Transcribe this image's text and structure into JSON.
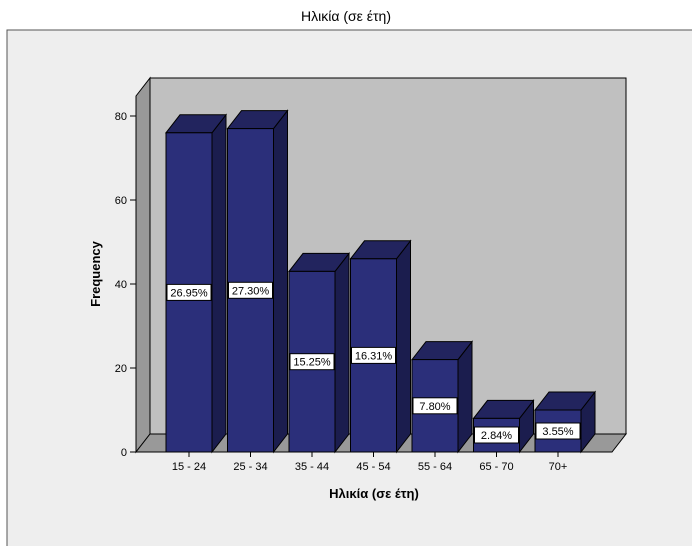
{
  "chart_data": {
    "type": "bar",
    "title": "Ηλικία (σε έτη)",
    "xlabel": "Ηλικία (σε έτη)",
    "ylabel": "Frequency",
    "categories": [
      "15 - 24",
      "25 - 34",
      "35 - 44",
      "45 - 54",
      "55 - 64",
      "65 - 70",
      "70+"
    ],
    "values": [
      76,
      77,
      43,
      46,
      22,
      8,
      10
    ],
    "percent_labels": [
      "26.95%",
      "27.30%",
      "15.25%",
      "16.31%",
      "7.80%",
      "2.84%",
      "3.55%"
    ],
    "yticks": [
      "0",
      "20",
      "40",
      "60",
      "80"
    ],
    "ylim": [
      0,
      80
    ],
    "grid": false,
    "bar_color": "#2b2f7a",
    "chart_background": "#eeeeee",
    "plot_background": "#c0c0c0"
  }
}
